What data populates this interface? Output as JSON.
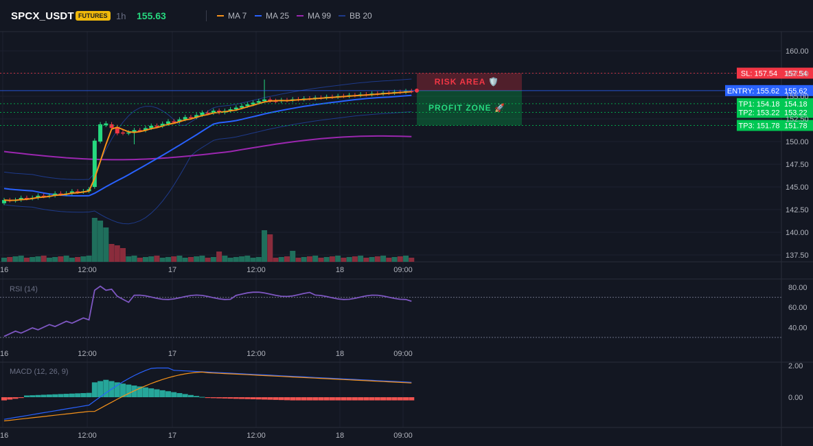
{
  "header": {
    "symbol": "SPCX_USDT",
    "badge": "FUTURES",
    "timeframe": "1h",
    "last_price": "155.63",
    "legend": [
      {
        "label": "MA 7",
        "color": "#f7931a"
      },
      {
        "label": "MA 25",
        "color": "#2962ff"
      },
      {
        "label": "MA 99",
        "color": "#9c27b0"
      },
      {
        "label": "BB 20",
        "color": "#1e3a8a"
      }
    ]
  },
  "main_axis": {
    "ticks": [
      "160.00",
      "157.50",
      "155.00",
      "152.50",
      "150.00",
      "147.50",
      "145.00",
      "142.50",
      "140.00",
      "137.50"
    ]
  },
  "time_axis": {
    "labels": [
      "16",
      "12:00",
      "17",
      "12:00",
      "18",
      "09:00"
    ]
  },
  "levels": [
    {
      "label": "SL: 157.54",
      "value": "157.54",
      "color": "#f23645"
    },
    {
      "label": "ENTRY: 155.62",
      "value": "155.62",
      "color": "#2962ff"
    },
    {
      "label": "TP1: 154.18",
      "value": "154.18",
      "color": "#00c853"
    },
    {
      "label": "TP2: 153.22",
      "value": "153.22",
      "color": "#00c853"
    },
    {
      "label": "TP3: 151.78",
      "value": "151.78",
      "color": "#00c853"
    }
  ],
  "zones": {
    "risk": "RISK AREA 🛡️",
    "profit": "PROFIT ZONE 🚀"
  },
  "rsi": {
    "label": "RSI (14)",
    "ticks": [
      "80.00",
      "60.00",
      "40.00"
    ]
  },
  "macd": {
    "label": "MACD (12, 26, 9)",
    "ticks": [
      "2.00",
      "0.00"
    ]
  },
  "colors": {
    "up": "#26d97f",
    "down": "#f23645",
    "bg": "#131722"
  }
}
